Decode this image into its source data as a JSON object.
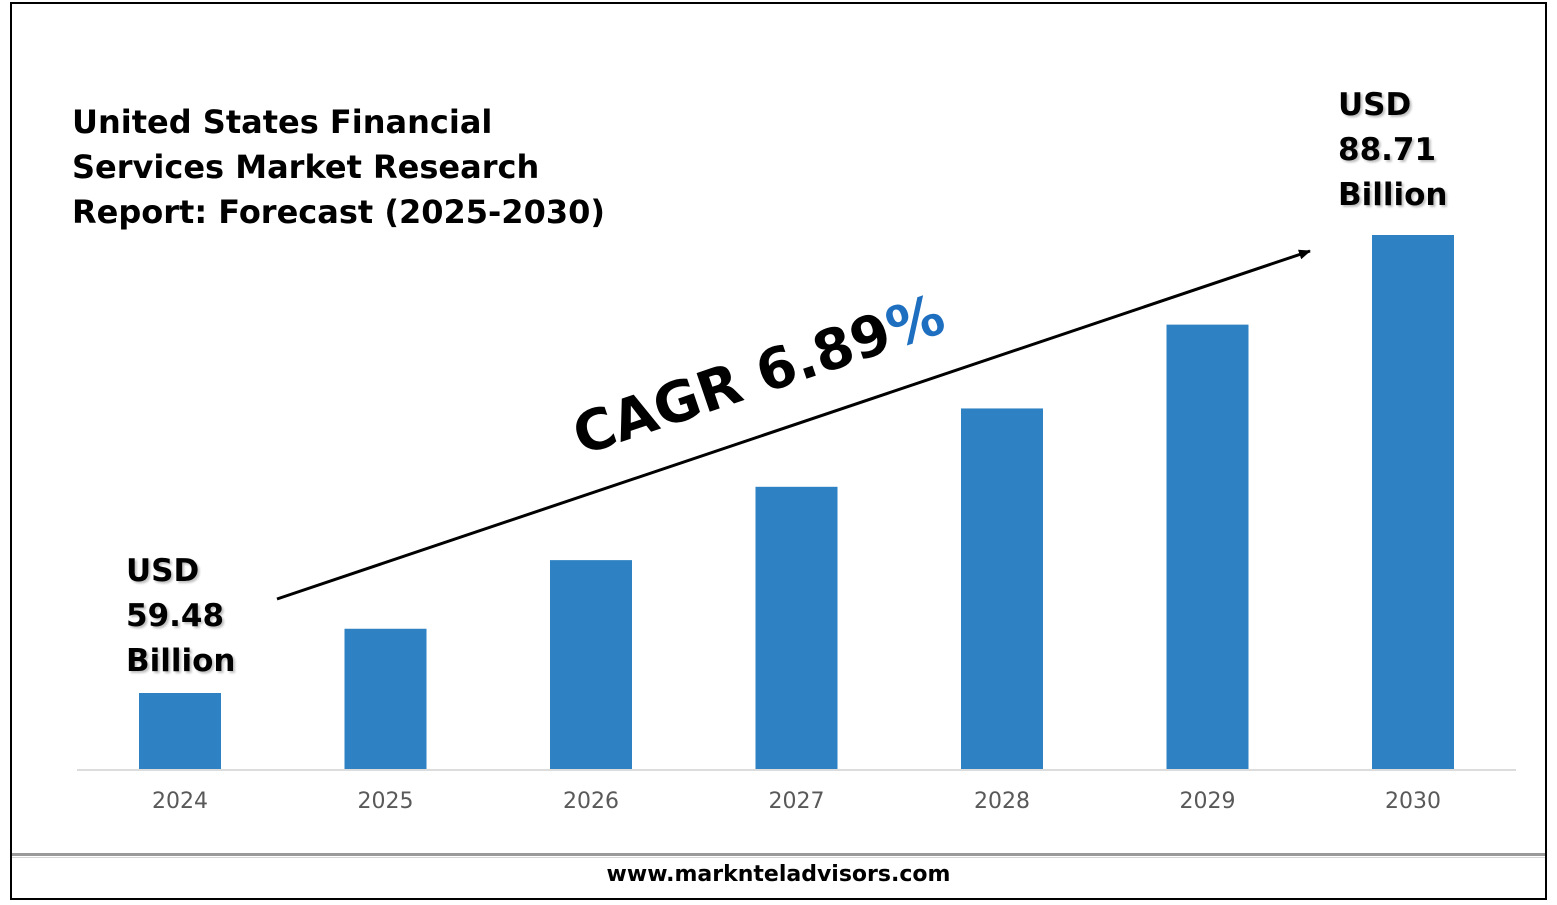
{
  "chart_data": {
    "type": "bar",
    "title": "United States Financial Services Market Research Report: Forecast (2025-2030)",
    "categories": [
      "2024",
      "2025",
      "2026",
      "2027",
      "2028",
      "2029",
      "2030"
    ],
    "values": [
      59.48,
      63.58,
      67.96,
      72.64,
      77.64,
      82.99,
      88.71
    ],
    "unit": "USD Billion",
    "xlabel": "",
    "ylabel": "",
    "grid": false,
    "bar_color": "#2e82c4",
    "start_annotation": {
      "line1": "USD",
      "line2": "59.48",
      "line3": "Billion"
    },
    "end_annotation": {
      "line1": "USD",
      "line2": "88.71",
      "line3": "Billion"
    },
    "cagr": {
      "text": "CAGR 6.89",
      "percent": "%",
      "percent_color": "#1f6fc0"
    }
  },
  "footer": {
    "website": "www.marknteladvisors.com"
  }
}
